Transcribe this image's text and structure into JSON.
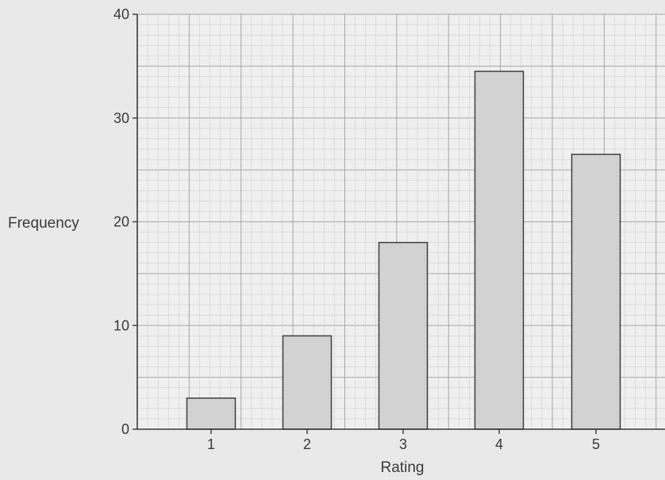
{
  "chart_data": {
    "type": "bar",
    "categories": [
      "1",
      "2",
      "3",
      "4",
      "5"
    ],
    "values": [
      3,
      9,
      18,
      34.5,
      26.5
    ],
    "xlabel": "Rating",
    "ylabel": "Frequency",
    "ylim": [
      0,
      40
    ],
    "yticks": [
      "0",
      "10",
      "20",
      "30",
      "40"
    ],
    "grid": "on (fine graph-paper grid)",
    "colors": {
      "bar_fill": "#d2d2d2",
      "bar_stroke": "#3f3f3f",
      "grid_major": "#a6a6a6",
      "grid_minor": "#cfcfcf",
      "axis": "#3a3a3a",
      "paper": "#efefef"
    }
  }
}
